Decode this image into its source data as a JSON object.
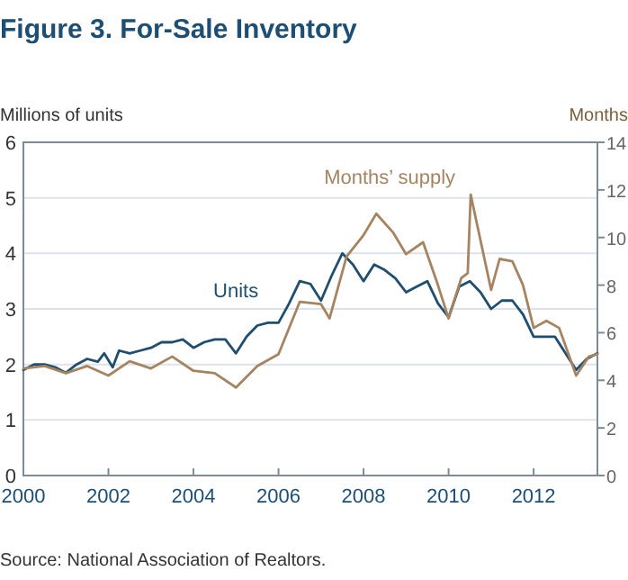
{
  "chart_data": {
    "type": "line",
    "title": "Figure 3. For-Sale Inventory",
    "ylabel": "Millions of units",
    "y2label": "Months",
    "xlim": [
      2000,
      2013.5
    ],
    "xticks": [
      2000,
      2002,
      2004,
      2006,
      2008,
      2010,
      2012
    ],
    "ylim": [
      0,
      6
    ],
    "yticks": [
      0,
      1,
      2,
      3,
      4,
      5,
      6
    ],
    "y2lim": [
      0,
      14
    ],
    "y2ticks": [
      0,
      2,
      4,
      6,
      8,
      10,
      12,
      14
    ],
    "grid": "y",
    "series": [
      {
        "name": "Units",
        "color": "#1f4e6e",
        "x": [
          2000,
          2000.25,
          2000.5,
          2000.75,
          2001,
          2001.25,
          2001.5,
          2001.75,
          2001.9,
          2002.1,
          2002.25,
          2002.5,
          2002.75,
          2003,
          2003.25,
          2003.5,
          2003.75,
          2004,
          2004.25,
          2004.5,
          2004.75,
          2005,
          2005.25,
          2005.5,
          2005.75,
          2006,
          2006.25,
          2006.5,
          2006.75,
          2007,
          2007.25,
          2007.5,
          2007.75,
          2008,
          2008.25,
          2008.5,
          2008.75,
          2009,
          2009.25,
          2009.5,
          2009.75,
          2010,
          2010.25,
          2010.5,
          2010.75,
          2011,
          2011.25,
          2011.5,
          2011.75,
          2012,
          2012.25,
          2012.5,
          2012.75,
          2013,
          2013.25,
          2013.5
        ],
        "values": [
          1.9,
          2.0,
          2.0,
          1.95,
          1.85,
          2.0,
          2.1,
          2.05,
          2.2,
          1.95,
          2.25,
          2.2,
          2.25,
          2.3,
          2.4,
          2.4,
          2.45,
          2.3,
          2.4,
          2.45,
          2.45,
          2.2,
          2.5,
          2.7,
          2.75,
          2.75,
          3.1,
          3.5,
          3.45,
          3.15,
          3.6,
          4.0,
          3.8,
          3.5,
          3.8,
          3.7,
          3.55,
          3.3,
          3.4,
          3.5,
          3.1,
          2.85,
          3.4,
          3.5,
          3.3,
          3.0,
          3.15,
          3.15,
          2.9,
          2.5,
          2.5,
          2.5,
          2.2,
          1.9,
          2.1,
          2.2
        ]
      },
      {
        "name": "Months’ supply",
        "color": "#a58462",
        "axis": "y2",
        "x": [
          2000,
          2000.5,
          2001,
          2001.5,
          2002,
          2002.5,
          2003,
          2003.5,
          2004,
          2004.5,
          2005,
          2005.5,
          2006,
          2006.5,
          2007,
          2007.2,
          2007.6,
          2008,
          2008.3,
          2008.7,
          2009,
          2009.4,
          2009.75,
          2010,
          2010.3,
          2010.45,
          2010.52,
          2011,
          2011.2,
          2011.5,
          2011.75,
          2012,
          2012.3,
          2012.6,
          2012.8,
          2013,
          2013.3,
          2013.5
        ],
        "values": [
          4.5,
          4.6,
          4.3,
          4.6,
          4.2,
          4.8,
          4.5,
          5.0,
          4.4,
          4.3,
          3.7,
          4.6,
          5.1,
          7.3,
          7.2,
          6.6,
          9.2,
          10.1,
          11.0,
          10.2,
          9.3,
          9.8,
          8.0,
          6.6,
          8.3,
          8.5,
          11.8,
          7.8,
          9.1,
          9.0,
          8.0,
          6.2,
          6.5,
          6.2,
          5.2,
          4.2,
          5.0,
          5.1
        ]
      }
    ],
    "annotations": [
      "Source: National Association of Realtors."
    ]
  }
}
